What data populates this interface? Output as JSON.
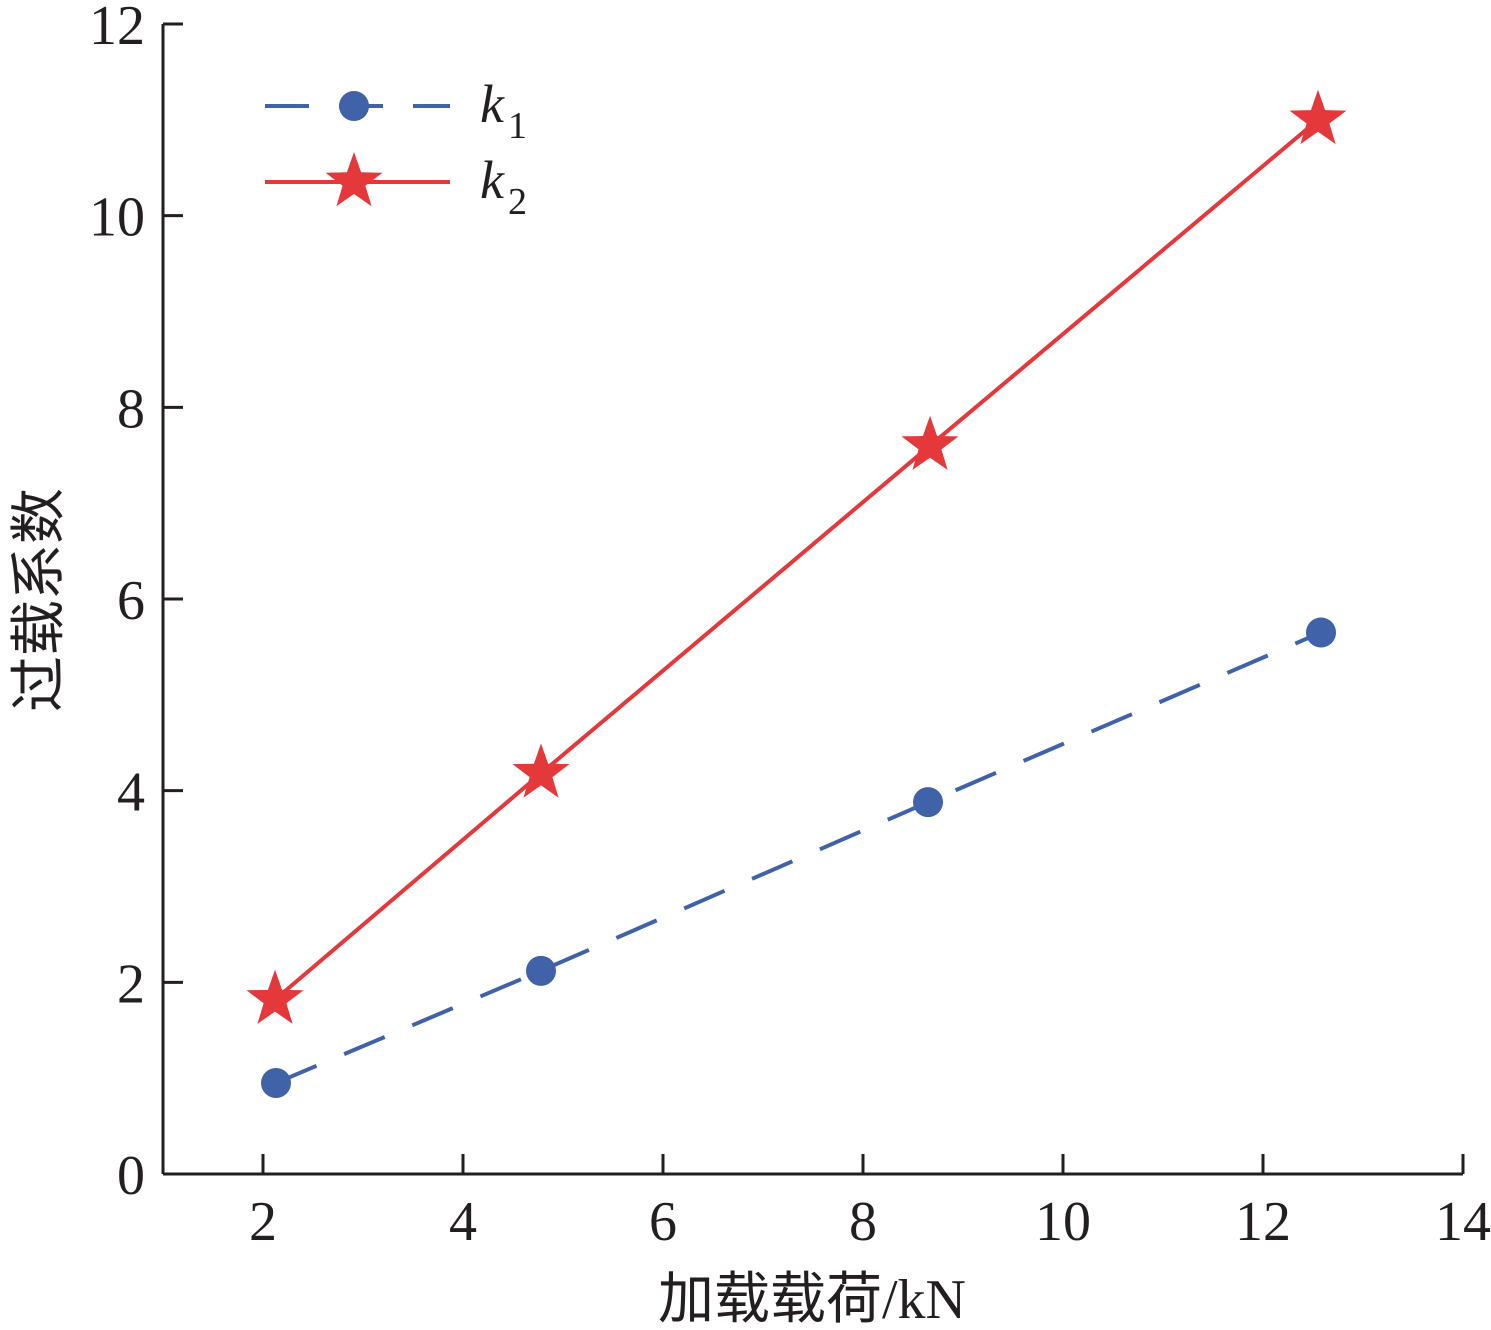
{
  "chart_data": {
    "type": "line",
    "title": "",
    "xlabel": "加载载荷/kN",
    "ylabel": "过载系数",
    "xlim": [
      1,
      14
    ],
    "ylim": [
      0,
      12
    ],
    "xticks": [
      2,
      4,
      6,
      8,
      10,
      12,
      14
    ],
    "yticks": [
      0,
      2,
      4,
      6,
      8,
      10,
      12
    ],
    "grid": false,
    "legend_position": "top-left",
    "series": [
      {
        "name": "k",
        "subscript": "1",
        "marker": "circle",
        "line_style": "dashed",
        "color": "#3f62a8",
        "x": [
          2.13,
          4.78,
          8.65,
          12.58
        ],
        "y": [
          0.95,
          2.12,
          3.88,
          5.65
        ]
      },
      {
        "name": "k",
        "subscript": "2",
        "marker": "star",
        "line_style": "solid",
        "color": "#e5383b",
        "x": [
          2.12,
          4.78,
          8.67,
          12.55
        ],
        "y": [
          1.82,
          4.18,
          7.6,
          11.0
        ]
      }
    ]
  }
}
